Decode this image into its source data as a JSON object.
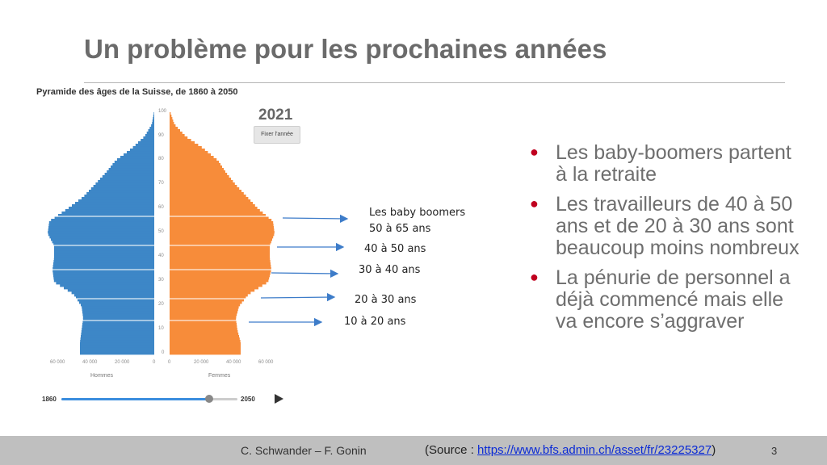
{
  "slide": {
    "title": "Un problème pour les prochaines années"
  },
  "pyramid": {
    "title": "Pyramide des âges de la Suisse, de 1860 à 2050",
    "year": "2021",
    "fix_button": "Fixer l'année",
    "y_ticks": [
      "100",
      "90",
      "80",
      "70",
      "60",
      "50",
      "40",
      "30",
      "20",
      "10",
      "0"
    ],
    "x_ticks_left": [
      "60 000",
      "40 000",
      "20 000",
      "0"
    ],
    "x_ticks_right": [
      "0",
      "20 000",
      "40 000",
      "60 000"
    ],
    "x_title_left": "Hommes",
    "x_title_right": "Femmes",
    "slider": {
      "start": "1860",
      "end": "2050",
      "value_fraction": 0.84
    },
    "colors": {
      "men": "#3d87c7",
      "women": "#f78c3a"
    }
  },
  "chart_data": {
    "type": "bar",
    "title": "Pyramide des âges de la Suisse, de 1860 à 2050",
    "year": "2021",
    "xlabel_left": "Hommes",
    "xlabel_right": "Femmes",
    "ylim": [
      0,
      100
    ],
    "xlim": [
      0,
      60000
    ],
    "ages": [
      0,
      5,
      10,
      15,
      20,
      25,
      30,
      35,
      40,
      45,
      50,
      55,
      60,
      65,
      70,
      75,
      80,
      85,
      90,
      95,
      100
    ],
    "series": [
      {
        "name": "Hommes",
        "values": [
          46000,
          46000,
          45000,
          44000,
          45000,
          50000,
          62000,
          63000,
          62000,
          62000,
          66000,
          65000,
          54000,
          44000,
          37000,
          30000,
          24000,
          14000,
          6000,
          1500,
          200
        ]
      },
      {
        "name": "Femmes",
        "values": [
          44000,
          44000,
          42000,
          41000,
          43000,
          49000,
          61000,
          63000,
          62000,
          62000,
          65000,
          64000,
          55000,
          48000,
          41000,
          35000,
          30000,
          21000,
          10000,
          3000,
          400
        ]
      }
    ]
  },
  "annotations": [
    {
      "label": "Les baby boomers",
      "age": 57
    },
    {
      "label": "50 à 65 ans",
      "age": null
    },
    {
      "label": "40 à 50 ans",
      "age": 45
    },
    {
      "label": "30 à 40 ans",
      "age": 35
    },
    {
      "label": "20 à 30 ans",
      "age": 23
    },
    {
      "label": "10 à 20 ans",
      "age": 14
    }
  ],
  "bullets": [
    "Les baby-boomers partent à la retraite",
    "Les travailleurs de 40 à 50 ans et de 20 à 30 ans sont beaucoup moins nombreux",
    "La pénurie de personnel a déjà commencé mais elle va encore s’aggraver"
  ],
  "footer": {
    "authors": "C. Schwander – F. Gonin",
    "source_prefix": "(Source : ",
    "source_link": "https://www.bfs.admin.ch/asset/fr/23225327",
    "source_suffix": ")",
    "page": "3"
  }
}
